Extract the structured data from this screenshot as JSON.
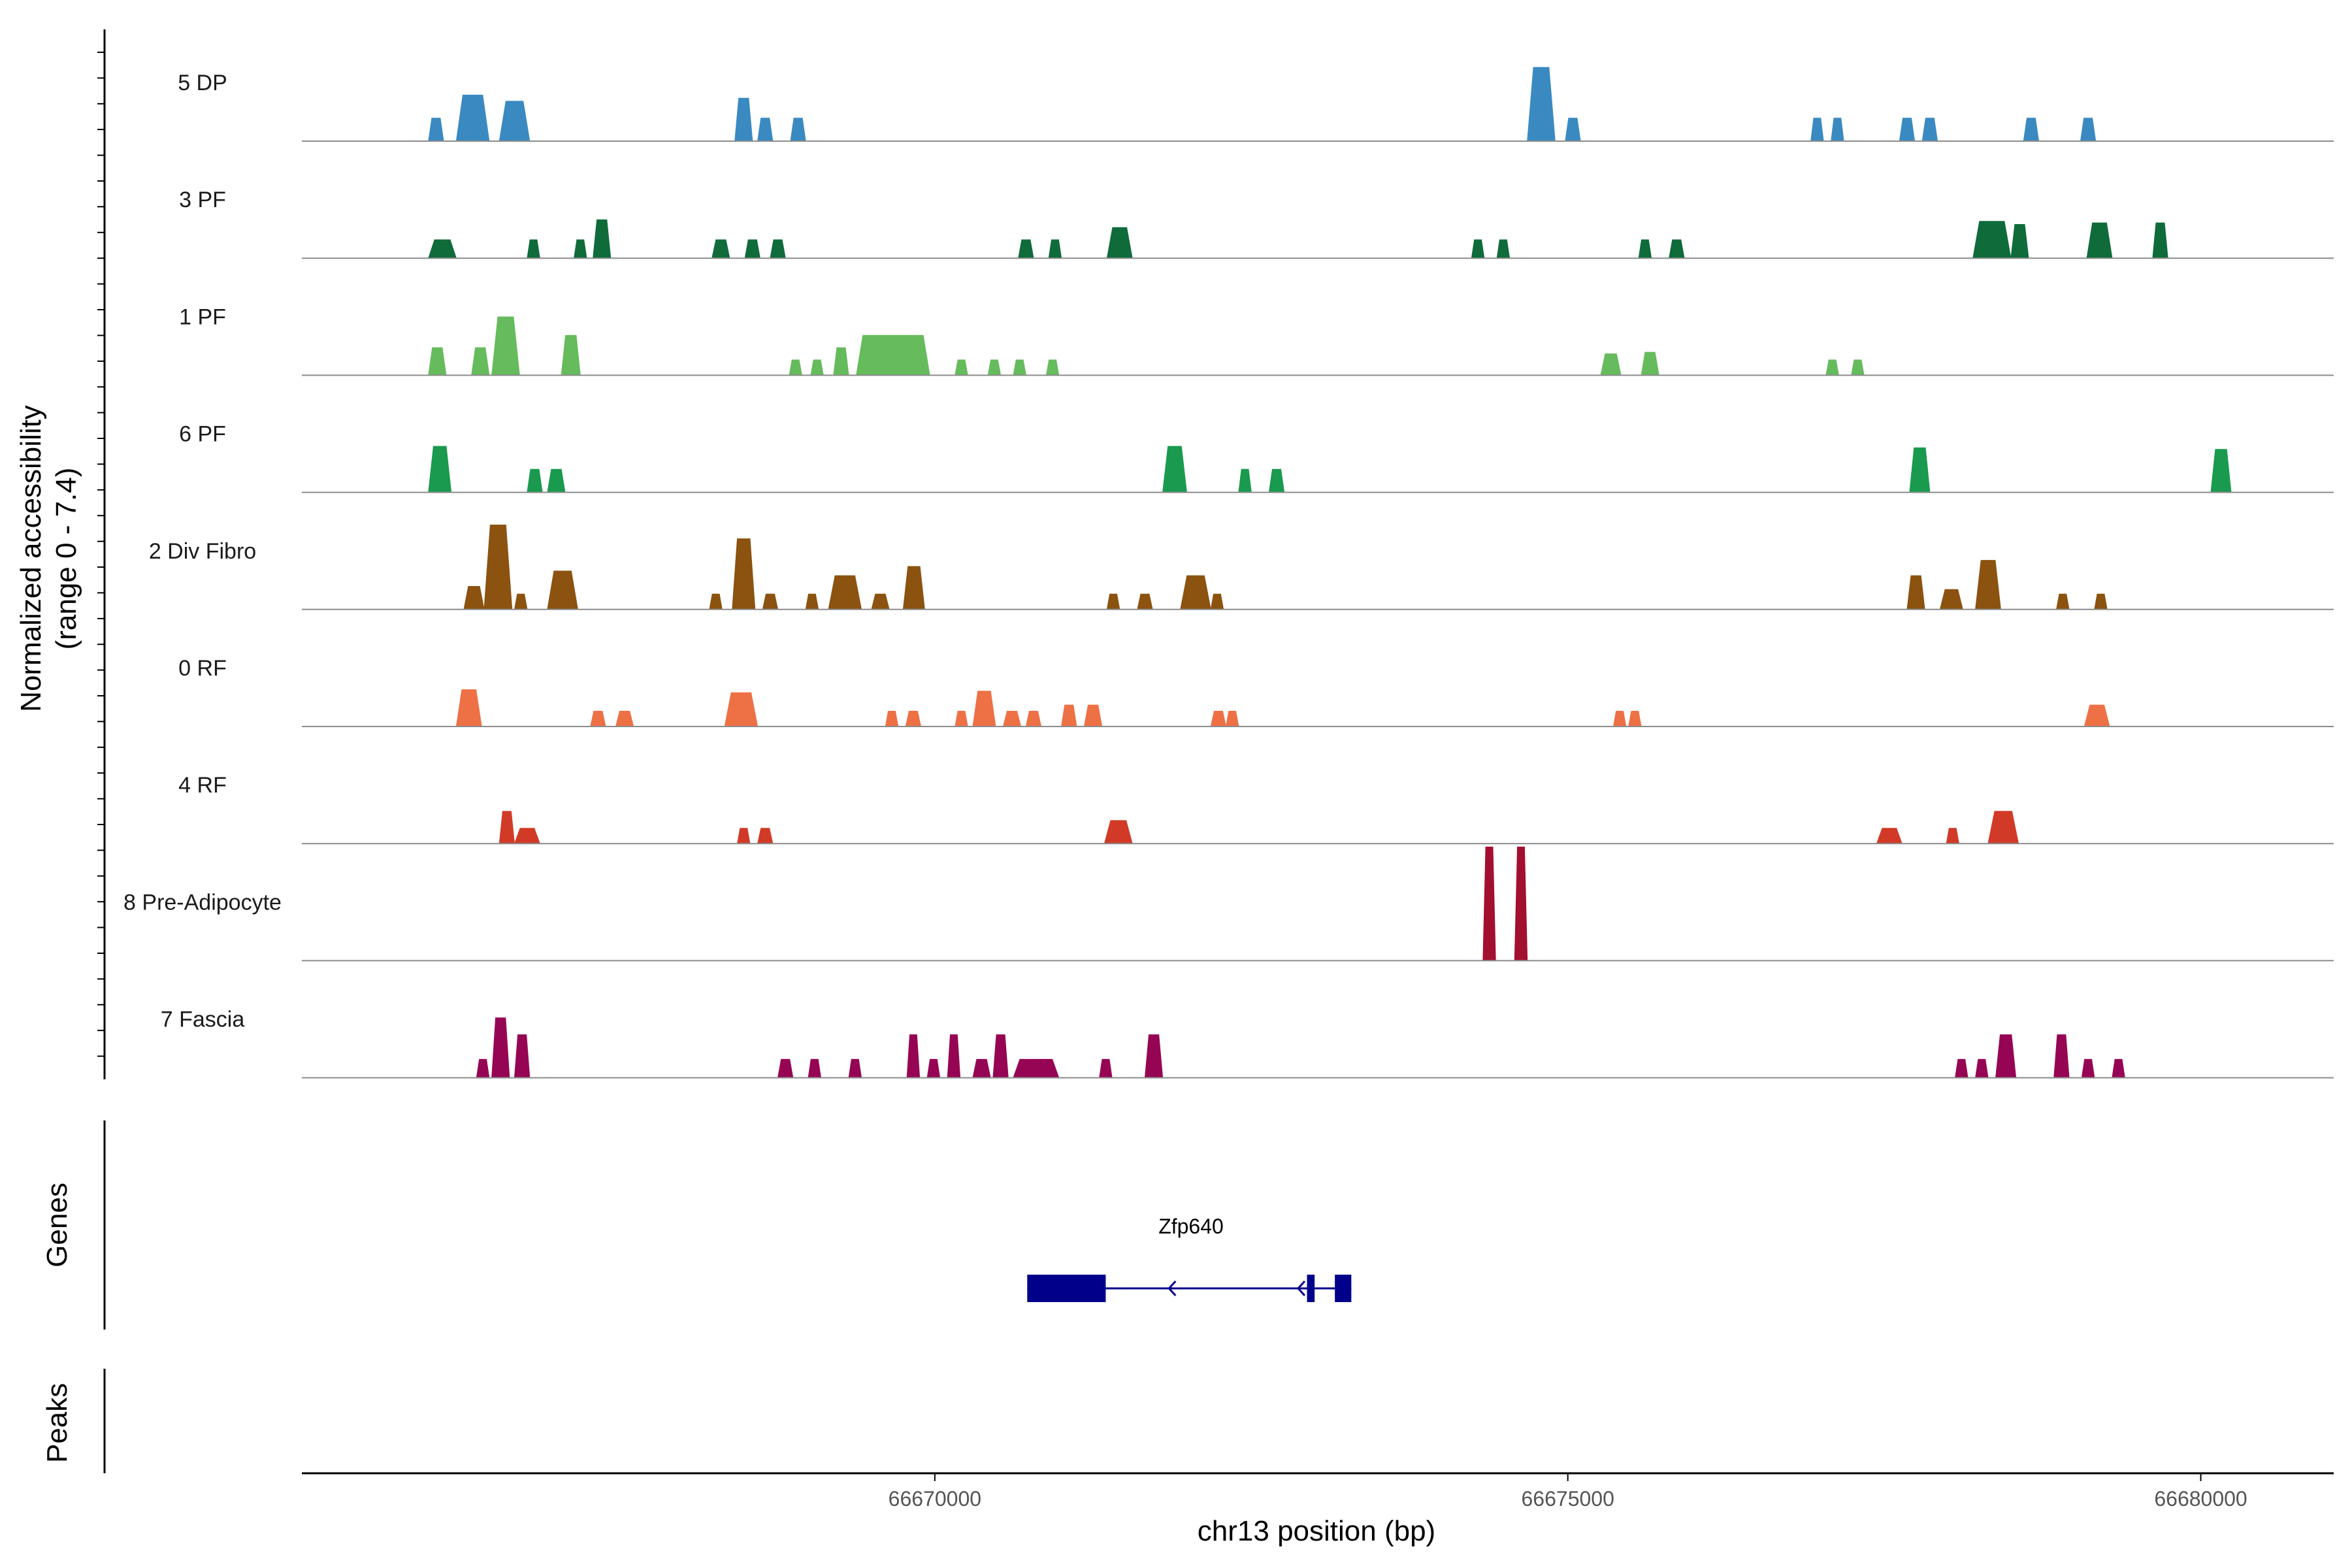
{
  "chart_data": {
    "type": "coverage",
    "y_axis_title_line1": "Normalized accessibility",
    "y_axis_title_line2": "(range 0 - 7.4)",
    "y_range": [
      0,
      7.4
    ],
    "x_axis_title": "chr13 position (bp)",
    "x_range": [
      66665000,
      66681050
    ],
    "x_ticks": [
      66670000,
      66675000,
      66680000
    ],
    "x_tick_labels": [
      "66670000",
      "66675000",
      "66680000"
    ],
    "tracks": [
      {
        "name": "5 DP",
        "color": "#3a8ac1",
        "peaks": [
          [
            66666000,
            66666120,
            1.5
          ],
          [
            66666220,
            66666480,
            3.0
          ],
          [
            66666560,
            66666800,
            2.6
          ],
          [
            66668420,
            66668560,
            2.8
          ],
          [
            66668600,
            66668720,
            1.5
          ],
          [
            66668860,
            66668980,
            1.5
          ],
          [
            66674680,
            66674900,
            4.8
          ],
          [
            66674980,
            66675100,
            1.5
          ],
          [
            66676920,
            66677020,
            1.5
          ],
          [
            66677080,
            66677180,
            1.5
          ],
          [
            66677620,
            66677740,
            1.5
          ],
          [
            66677800,
            66677920,
            1.5
          ],
          [
            66678600,
            66678720,
            1.5
          ],
          [
            66679050,
            66679170,
            1.5
          ]
        ]
      },
      {
        "name": "3 PF",
        "color": "#0f6b3a",
        "peaks": [
          [
            66666000,
            66666220,
            1.2
          ],
          [
            66666780,
            66666880,
            1.2
          ],
          [
            66667150,
            66667250,
            1.2
          ],
          [
            66667300,
            66667440,
            2.5
          ],
          [
            66668240,
            66668380,
            1.2
          ],
          [
            66668500,
            66668620,
            1.2
          ],
          [
            66668700,
            66668820,
            1.2
          ],
          [
            66670660,
            66670780,
            1.2
          ],
          [
            66670900,
            66671000,
            1.2
          ],
          [
            66671360,
            66671560,
            2.0
          ],
          [
            66674240,
            66674340,
            1.2
          ],
          [
            66674440,
            66674540,
            1.2
          ],
          [
            66675560,
            66675660,
            1.2
          ],
          [
            66675800,
            66675920,
            1.2
          ],
          [
            66678200,
            66678500,
            2.4
          ],
          [
            66678500,
            66678640,
            2.2
          ],
          [
            66679100,
            66679300,
            2.3
          ],
          [
            66679620,
            66679740,
            2.3
          ]
        ]
      },
      {
        "name": "1 PF",
        "color": "#66bb5c",
        "peaks": [
          [
            66666000,
            66666140,
            1.8
          ],
          [
            66666340,
            66666480,
            1.8
          ],
          [
            66666500,
            66666720,
            3.8
          ],
          [
            66667050,
            66667200,
            2.6
          ],
          [
            66668850,
            66668950,
            1.0
          ],
          [
            66669020,
            66669120,
            1.0
          ],
          [
            66669200,
            66669320,
            1.8
          ],
          [
            66669380,
            66669960,
            2.6
          ],
          [
            66670160,
            66670260,
            1.0
          ],
          [
            66670420,
            66670520,
            1.0
          ],
          [
            66670620,
            66670720,
            1.0
          ],
          [
            66670880,
            66670980,
            1.0
          ],
          [
            66675260,
            66675420,
            1.4
          ],
          [
            66675580,
            66675720,
            1.5
          ],
          [
            66677040,
            66677140,
            1.0
          ],
          [
            66677240,
            66677340,
            1.0
          ]
        ]
      },
      {
        "name": "6 PF",
        "color": "#1a9a4e",
        "peaks": [
          [
            66666000,
            66666180,
            3.0
          ],
          [
            66666780,
            66666900,
            1.5
          ],
          [
            66666940,
            66667080,
            1.5
          ],
          [
            66671800,
            66671990,
            3.0
          ],
          [
            66672400,
            66672500,
            1.5
          ],
          [
            66672640,
            66672760,
            1.5
          ],
          [
            66677700,
            66677860,
            2.9
          ],
          [
            66680080,
            66680240,
            2.8
          ]
        ]
      },
      {
        "name": "2 Div Fibro",
        "color": "#8b5210",
        "peaks": [
          [
            66666280,
            66666440,
            1.5
          ],
          [
            66666440,
            66666660,
            5.5
          ],
          [
            66666680,
            66666780,
            1.0
          ],
          [
            66666940,
            66667180,
            2.5
          ],
          [
            66668220,
            66668320,
            1.0
          ],
          [
            66668400,
            66668580,
            4.6
          ],
          [
            66668640,
            66668760,
            1.0
          ],
          [
            66668980,
            66669080,
            1.0
          ],
          [
            66669160,
            66669420,
            2.2
          ],
          [
            66669500,
            66669640,
            1.0
          ],
          [
            66669750,
            66669920,
            2.8
          ],
          [
            66671360,
            66671460,
            1.0
          ],
          [
            66671600,
            66671720,
            1.0
          ],
          [
            66671940,
            66672180,
            2.2
          ],
          [
            66672180,
            66672280,
            1.0
          ],
          [
            66677680,
            66677820,
            2.2
          ],
          [
            66677940,
            66678120,
            1.3
          ],
          [
            66678220,
            66678420,
            3.2
          ],
          [
            66678860,
            66678960,
            1.0
          ],
          [
            66679160,
            66679260,
            1.0
          ]
        ]
      },
      {
        "name": "0 RF",
        "color": "#ee7045",
        "peaks": [
          [
            66666220,
            66666420,
            2.4
          ],
          [
            66667280,
            66667400,
            1.0
          ],
          [
            66667480,
            66667620,
            1.0
          ],
          [
            66668340,
            66668600,
            2.2
          ],
          [
            66669610,
            66669710,
            1.0
          ],
          [
            66669770,
            66669890,
            1.0
          ],
          [
            66670160,
            66670260,
            1.0
          ],
          [
            66670300,
            66670480,
            2.3
          ],
          [
            66670540,
            66670680,
            1.0
          ],
          [
            66670720,
            66670840,
            1.0
          ],
          [
            66671000,
            66671120,
            1.4
          ],
          [
            66671180,
            66671320,
            1.4
          ],
          [
            66672180,
            66672300,
            1.0
          ],
          [
            66672300,
            66672400,
            1.0
          ],
          [
            66675360,
            66675460,
            1.0
          ],
          [
            66675480,
            66675580,
            1.0
          ],
          [
            66679080,
            66679280,
            1.4
          ]
        ]
      },
      {
        "name": "4 RF",
        "color": "#d23a28",
        "peaks": [
          [
            66666560,
            66666680,
            2.1
          ],
          [
            66666680,
            66666880,
            1.0
          ],
          [
            66668440,
            66668540,
            1.0
          ],
          [
            66668600,
            66668720,
            1.0
          ],
          [
            66671340,
            66671560,
            1.5
          ],
          [
            66677440,
            66677640,
            1.0
          ],
          [
            66677990,
            66678090,
            1.0
          ],
          [
            66678320,
            66678560,
            2.1
          ]
        ]
      },
      {
        "name": "8 Pre-Adipocyte",
        "color": "#a30f2e",
        "peaks": [
          [
            66674330,
            66674430,
            7.4
          ],
          [
            66674580,
            66674680,
            7.4
          ]
        ]
      },
      {
        "name": "7 Fascia",
        "color": "#960554",
        "peaks": [
          [
            66666380,
            66666480,
            1.2
          ],
          [
            66666500,
            66666640,
            3.9
          ],
          [
            66666680,
            66666800,
            2.8
          ],
          [
            66668760,
            66668880,
            1.2
          ],
          [
            66669000,
            66669100,
            1.2
          ],
          [
            66669320,
            66669420,
            1.2
          ],
          [
            66669780,
            66669880,
            2.8
          ],
          [
            66669940,
            66670040,
            1.2
          ],
          [
            66670100,
            66670200,
            2.8
          ],
          [
            66670300,
            66670440,
            1.2
          ],
          [
            66670460,
            66670580,
            2.8
          ],
          [
            66670620,
            66670980,
            1.2
          ],
          [
            66671300,
            66671400,
            1.2
          ],
          [
            66671660,
            66671800,
            2.8
          ],
          [
            66678060,
            66678160,
            1.2
          ],
          [
            66678220,
            66678320,
            1.2
          ],
          [
            66678380,
            66678540,
            2.8
          ],
          [
            66678840,
            66678960,
            2.8
          ],
          [
            66679060,
            66679160,
            1.2
          ],
          [
            66679300,
            66679400,
            1.2
          ]
        ]
      }
    ],
    "genes_title": "Genes",
    "peaks_title": "Peaks",
    "gene": {
      "name": "Zfp640",
      "color": "#00008b",
      "strand": "-",
      "start": 66670730,
      "end": 66673290,
      "exons": [
        [
          66670730,
          66671350
        ],
        [
          66672940,
          66673000
        ],
        [
          66673160,
          66673290
        ]
      ],
      "arrow_positions": [
        66671850,
        66672870
      ]
    }
  }
}
